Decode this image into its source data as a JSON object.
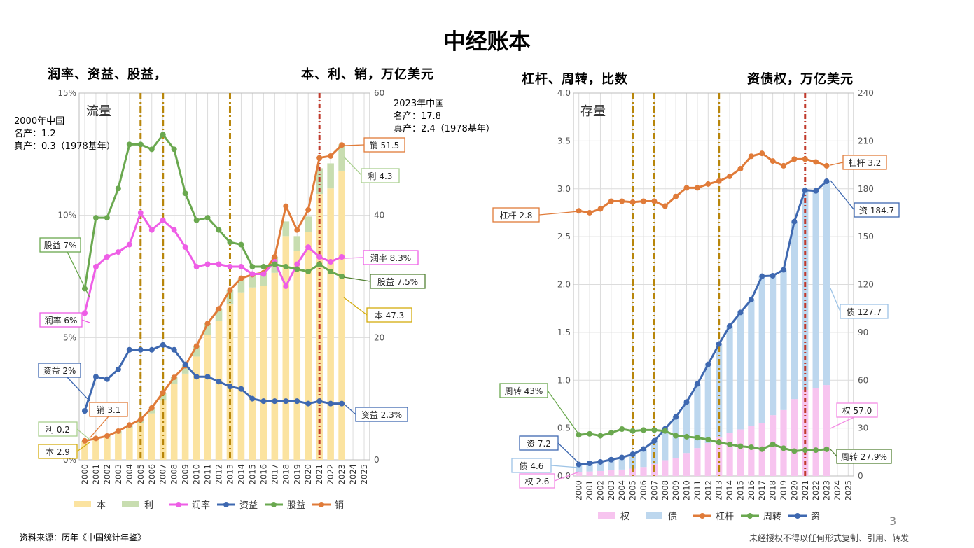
{
  "page": {
    "title": "中经账本",
    "source": "资料来源：历年《中国统计年鉴》",
    "copyright": "未经授权不得以任何形式复制、引用、转发",
    "page_number": "3"
  },
  "left": {
    "subtitle_left": "润率、资益、股益，",
    "subtitle_right": "本、利、销，万亿美元",
    "panel_label": "流量",
    "note_2000": [
      "2000年中国",
      "名产：1.2",
      "真产：0.3（1978基年）"
    ],
    "note_2023": [
      "2023年中国",
      "名产：17.8",
      "真产：2.4（1978基年）"
    ],
    "legend": [
      "本",
      "利",
      "润率",
      "资益",
      "股益",
      "销"
    ]
  },
  "right": {
    "subtitle_left": "杠杆、周转，比数",
    "subtitle_right": "资债权，万亿美元",
    "panel_label": "存量",
    "legend": [
      "权",
      "债",
      "杠杆",
      "周转",
      "资"
    ]
  },
  "chart_data": [
    {
      "type": "bar",
      "panel": "流量",
      "x": [
        "2000",
        "2001",
        "2002",
        "2003",
        "2004",
        "2005",
        "2006",
        "2007",
        "2008",
        "2009",
        "2010",
        "2011",
        "2012",
        "2013",
        "2014",
        "2015",
        "2016",
        "2017",
        "2018",
        "2019",
        "2020",
        "2021",
        "2022",
        "2023",
        "2024",
        "2025"
      ],
      "y_left": {
        "ticks": [
          "0%",
          "5%",
          "10%",
          "15%"
        ],
        "ylim": [
          0,
          0.15
        ]
      },
      "y_right": {
        "ticks": [
          "0",
          "20",
          "40",
          "60"
        ],
        "ylim": [
          0,
          60
        ]
      },
      "vlines": [
        {
          "x": "2005",
          "color": "#b8860b"
        },
        {
          "x": "2007",
          "color": "#b8860b"
        },
        {
          "x": "2013",
          "color": "#b8860b"
        },
        {
          "x": "2021",
          "color": "#c0392b"
        }
      ],
      "series": [
        {
          "name": "本",
          "axis": "right",
          "kind": "bar",
          "color": "#fbe3a0",
          "values": [
            2.9,
            3.2,
            3.6,
            4.3,
            5.2,
            6.0,
            7.6,
            9.7,
            12.4,
            14.1,
            16.9,
            20.4,
            22.7,
            25.5,
            27.4,
            28.2,
            28.4,
            30.6,
            36.6,
            34.2,
            37.3,
            43.5,
            44.4,
            47.3,
            null,
            null
          ]
        },
        {
          "name": "利",
          "axis": "right",
          "kind": "bar",
          "color": "#c8ddb0",
          "values": [
            0.2,
            0.3,
            0.3,
            0.4,
            0.5,
            0.6,
            0.8,
            1.2,
            1.1,
            1.3,
            1.7,
            1.9,
            2.0,
            2.2,
            2.3,
            2.1,
            2.2,
            2.6,
            2.4,
            2.4,
            2.5,
            4.2,
            4.1,
            4.3,
            null,
            null
          ]
        },
        {
          "name": "销",
          "axis": "right",
          "kind": "line",
          "color": "#e07b39",
          "values": [
            3.1,
            3.5,
            3.9,
            4.7,
            5.7,
            6.6,
            8.5,
            11.0,
            13.5,
            15.4,
            18.6,
            22.3,
            24.7,
            27.8,
            29.7,
            30.3,
            30.6,
            33.2,
            41.5,
            37.6,
            40.9,
            49.4,
            49.7,
            51.5,
            null,
            null
          ]
        },
        {
          "name": "润率",
          "axis": "left",
          "kind": "line",
          "color": "#ee5ee6",
          "values": [
            0.06,
            0.079,
            0.083,
            0.085,
            0.088,
            0.101,
            0.094,
            0.098,
            0.094,
            0.087,
            0.079,
            0.08,
            0.08,
            0.079,
            0.079,
            0.076,
            0.076,
            0.081,
            0.071,
            0.08,
            0.087,
            0.083,
            0.081,
            0.083,
            null,
            null
          ]
        },
        {
          "name": "资益",
          "axis": "left",
          "kind": "line",
          "color": "#3e68b0",
          "values": [
            0.02,
            0.034,
            0.033,
            0.037,
            0.045,
            0.045,
            0.045,
            0.047,
            0.045,
            0.039,
            0.034,
            0.034,
            0.032,
            0.03,
            0.029,
            0.025,
            0.024,
            0.024,
            0.024,
            0.024,
            0.023,
            0.024,
            0.023,
            0.023,
            null,
            null
          ]
        },
        {
          "name": "股益",
          "axis": "left",
          "kind": "line",
          "color": "#6aa84f",
          "values": [
            0.07,
            0.099,
            0.099,
            0.111,
            0.129,
            0.129,
            0.127,
            0.133,
            0.127,
            0.109,
            0.098,
            0.099,
            0.094,
            0.089,
            0.088,
            0.079,
            0.079,
            0.08,
            0.079,
            0.078,
            0.077,
            0.08,
            0.077,
            0.075,
            null,
            null
          ]
        }
      ],
      "callouts": [
        {
          "text": "销 51.5",
          "color": "#e07b39"
        },
        {
          "text": "利 4.3",
          "color": "#a9d08e"
        },
        {
          "text": "润率 8.3%",
          "color": "#ee5ee6"
        },
        {
          "text": "股益 7.5%",
          "color": "#548235"
        },
        {
          "text": "本 47.3",
          "color": "#d4ac0d"
        },
        {
          "text": "资益 2.3%",
          "color": "#3e68b0"
        },
        {
          "text": "股益 7%",
          "color": "#6aa84f"
        },
        {
          "text": "润率 6%",
          "color": "#ee5ee6"
        },
        {
          "text": "资益 2%",
          "color": "#3e68b0"
        },
        {
          "text": "销 3.1",
          "color": "#e07b39"
        },
        {
          "text": "利 0.2",
          "color": "#a9d08e"
        },
        {
          "text": "本 2.9",
          "color": "#d4ac0d"
        }
      ]
    },
    {
      "type": "bar",
      "panel": "存量",
      "x": [
        "2000",
        "2001",
        "2002",
        "2003",
        "2004",
        "2005",
        "2006",
        "2007",
        "2008",
        "2009",
        "2010",
        "2011",
        "2012",
        "2013",
        "2014",
        "2015",
        "2016",
        "2017",
        "2018",
        "2019",
        "2020",
        "2021",
        "2022",
        "2023",
        "2024",
        "2025"
      ],
      "y_left": {
        "ticks": [
          "0.0",
          "0.5",
          "1.0",
          "1.5",
          "2.0",
          "2.5",
          "3.0",
          "3.5",
          "4.0"
        ],
        "ylim": [
          0,
          4
        ]
      },
      "y_right": {
        "ticks": [
          "0",
          "30",
          "60",
          "90",
          "120",
          "150",
          "180",
          "210",
          "240"
        ],
        "ylim": [
          0,
          240
        ]
      },
      "vlines": [
        {
          "x": "2005",
          "color": "#b8860b"
        },
        {
          "x": "2007",
          "color": "#b8860b"
        },
        {
          "x": "2013",
          "color": "#b8860b"
        },
        {
          "x": "2021",
          "color": "#c0392b"
        }
      ],
      "series": [
        {
          "name": "权",
          "axis": "right",
          "kind": "bar",
          "color": "#f7c4ef",
          "values": [
            2.6,
            2.8,
            3.1,
            3.5,
            4.0,
            4.6,
            5.6,
            7.5,
            9.9,
            11.4,
            14.4,
            17.5,
            20.6,
            24.1,
            27.1,
            29.2,
            31.2,
            33.3,
            38.1,
            41.3,
            48.2,
            54.0,
            55.0,
            57.0,
            null,
            null
          ]
        },
        {
          "name": "债",
          "axis": "right",
          "kind": "bar",
          "color": "#bdd7ee",
          "values": [
            4.6,
            5.1,
            5.7,
            6.7,
            7.6,
            9.0,
            11.3,
            14.5,
            19.6,
            25.6,
            32.0,
            40.2,
            49.3,
            58.6,
            66.8,
            73.3,
            79.3,
            91.9,
            87.4,
            87.9,
            111.2,
            125.1,
            123.7,
            127.7,
            null,
            null
          ]
        },
        {
          "name": "资",
          "axis": "right",
          "kind": "line",
          "color": "#3e68b0",
          "values": [
            7.2,
            7.9,
            8.8,
            10.2,
            11.6,
            13.6,
            16.9,
            22.0,
            29.5,
            37.0,
            46.4,
            57.7,
            69.9,
            82.7,
            93.9,
            102.5,
            110.5,
            125.2,
            125.5,
            129.2,
            159.4,
            179.1,
            178.7,
            184.7,
            null,
            null
          ]
        },
        {
          "name": "杠杆",
          "axis": "left",
          "kind": "line",
          "color": "#e07b39",
          "values": [
            2.77,
            2.75,
            2.79,
            2.87,
            2.87,
            2.86,
            2.87,
            2.87,
            2.82,
            2.92,
            3.01,
            3.01,
            3.05,
            3.08,
            3.13,
            3.21,
            3.34,
            3.37,
            3.29,
            3.24,
            3.31,
            3.31,
            3.28,
            3.24,
            null,
            null
          ]
        },
        {
          "name": "周转",
          "axis": "left",
          "kind": "line",
          "color": "#6aa84f",
          "values": [
            0.43,
            0.44,
            0.42,
            0.45,
            0.49,
            0.47,
            0.48,
            0.48,
            0.47,
            0.42,
            0.41,
            0.4,
            0.38,
            0.35,
            0.33,
            0.31,
            0.3,
            0.28,
            0.33,
            0.29,
            0.26,
            0.27,
            0.27,
            0.279,
            null,
            null
          ]
        }
      ],
      "callouts": [
        {
          "text": "杠杆 3.2",
          "color": "#e07b39"
        },
        {
          "text": "资 184.7",
          "color": "#3e68b0"
        },
        {
          "text": "债 127.7",
          "color": "#9dc3e6"
        },
        {
          "text": "权 57.0",
          "color": "#f48ce4"
        },
        {
          "text": "周转 27.9%",
          "color": "#548235"
        },
        {
          "text": "杠杆 2.8",
          "color": "#e07b39"
        },
        {
          "text": "周转 43%",
          "color": "#6aa84f"
        },
        {
          "text": "资 7.2",
          "color": "#3e68b0"
        },
        {
          "text": "债 4.6",
          "color": "#9dc3e6"
        },
        {
          "text": "权 2.6",
          "color": "#f48ce4"
        }
      ]
    }
  ]
}
